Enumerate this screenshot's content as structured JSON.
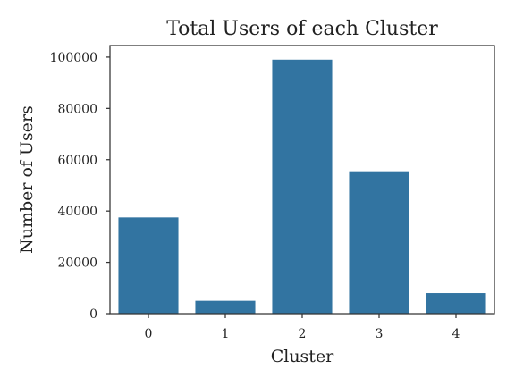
{
  "chart_data": {
    "type": "bar",
    "title": "Total Users of each Cluster",
    "xlabel": "Cluster",
    "ylabel": "Number of Users",
    "categories": [
      "0",
      "1",
      "2",
      "3",
      "4"
    ],
    "values": [
      37500,
      5000,
      99000,
      55500,
      8000
    ],
    "ylim": [
      0,
      104500
    ],
    "yticks": [
      0,
      20000,
      40000,
      60000,
      80000,
      100000
    ],
    "ytick_labels": [
      "0",
      "20000",
      "40000",
      "60000",
      "80000",
      "100000"
    ],
    "grid": false,
    "legend": "none",
    "bar_color": "#3274a1",
    "axis_color": "#333333",
    "text_color": "#222222"
  }
}
